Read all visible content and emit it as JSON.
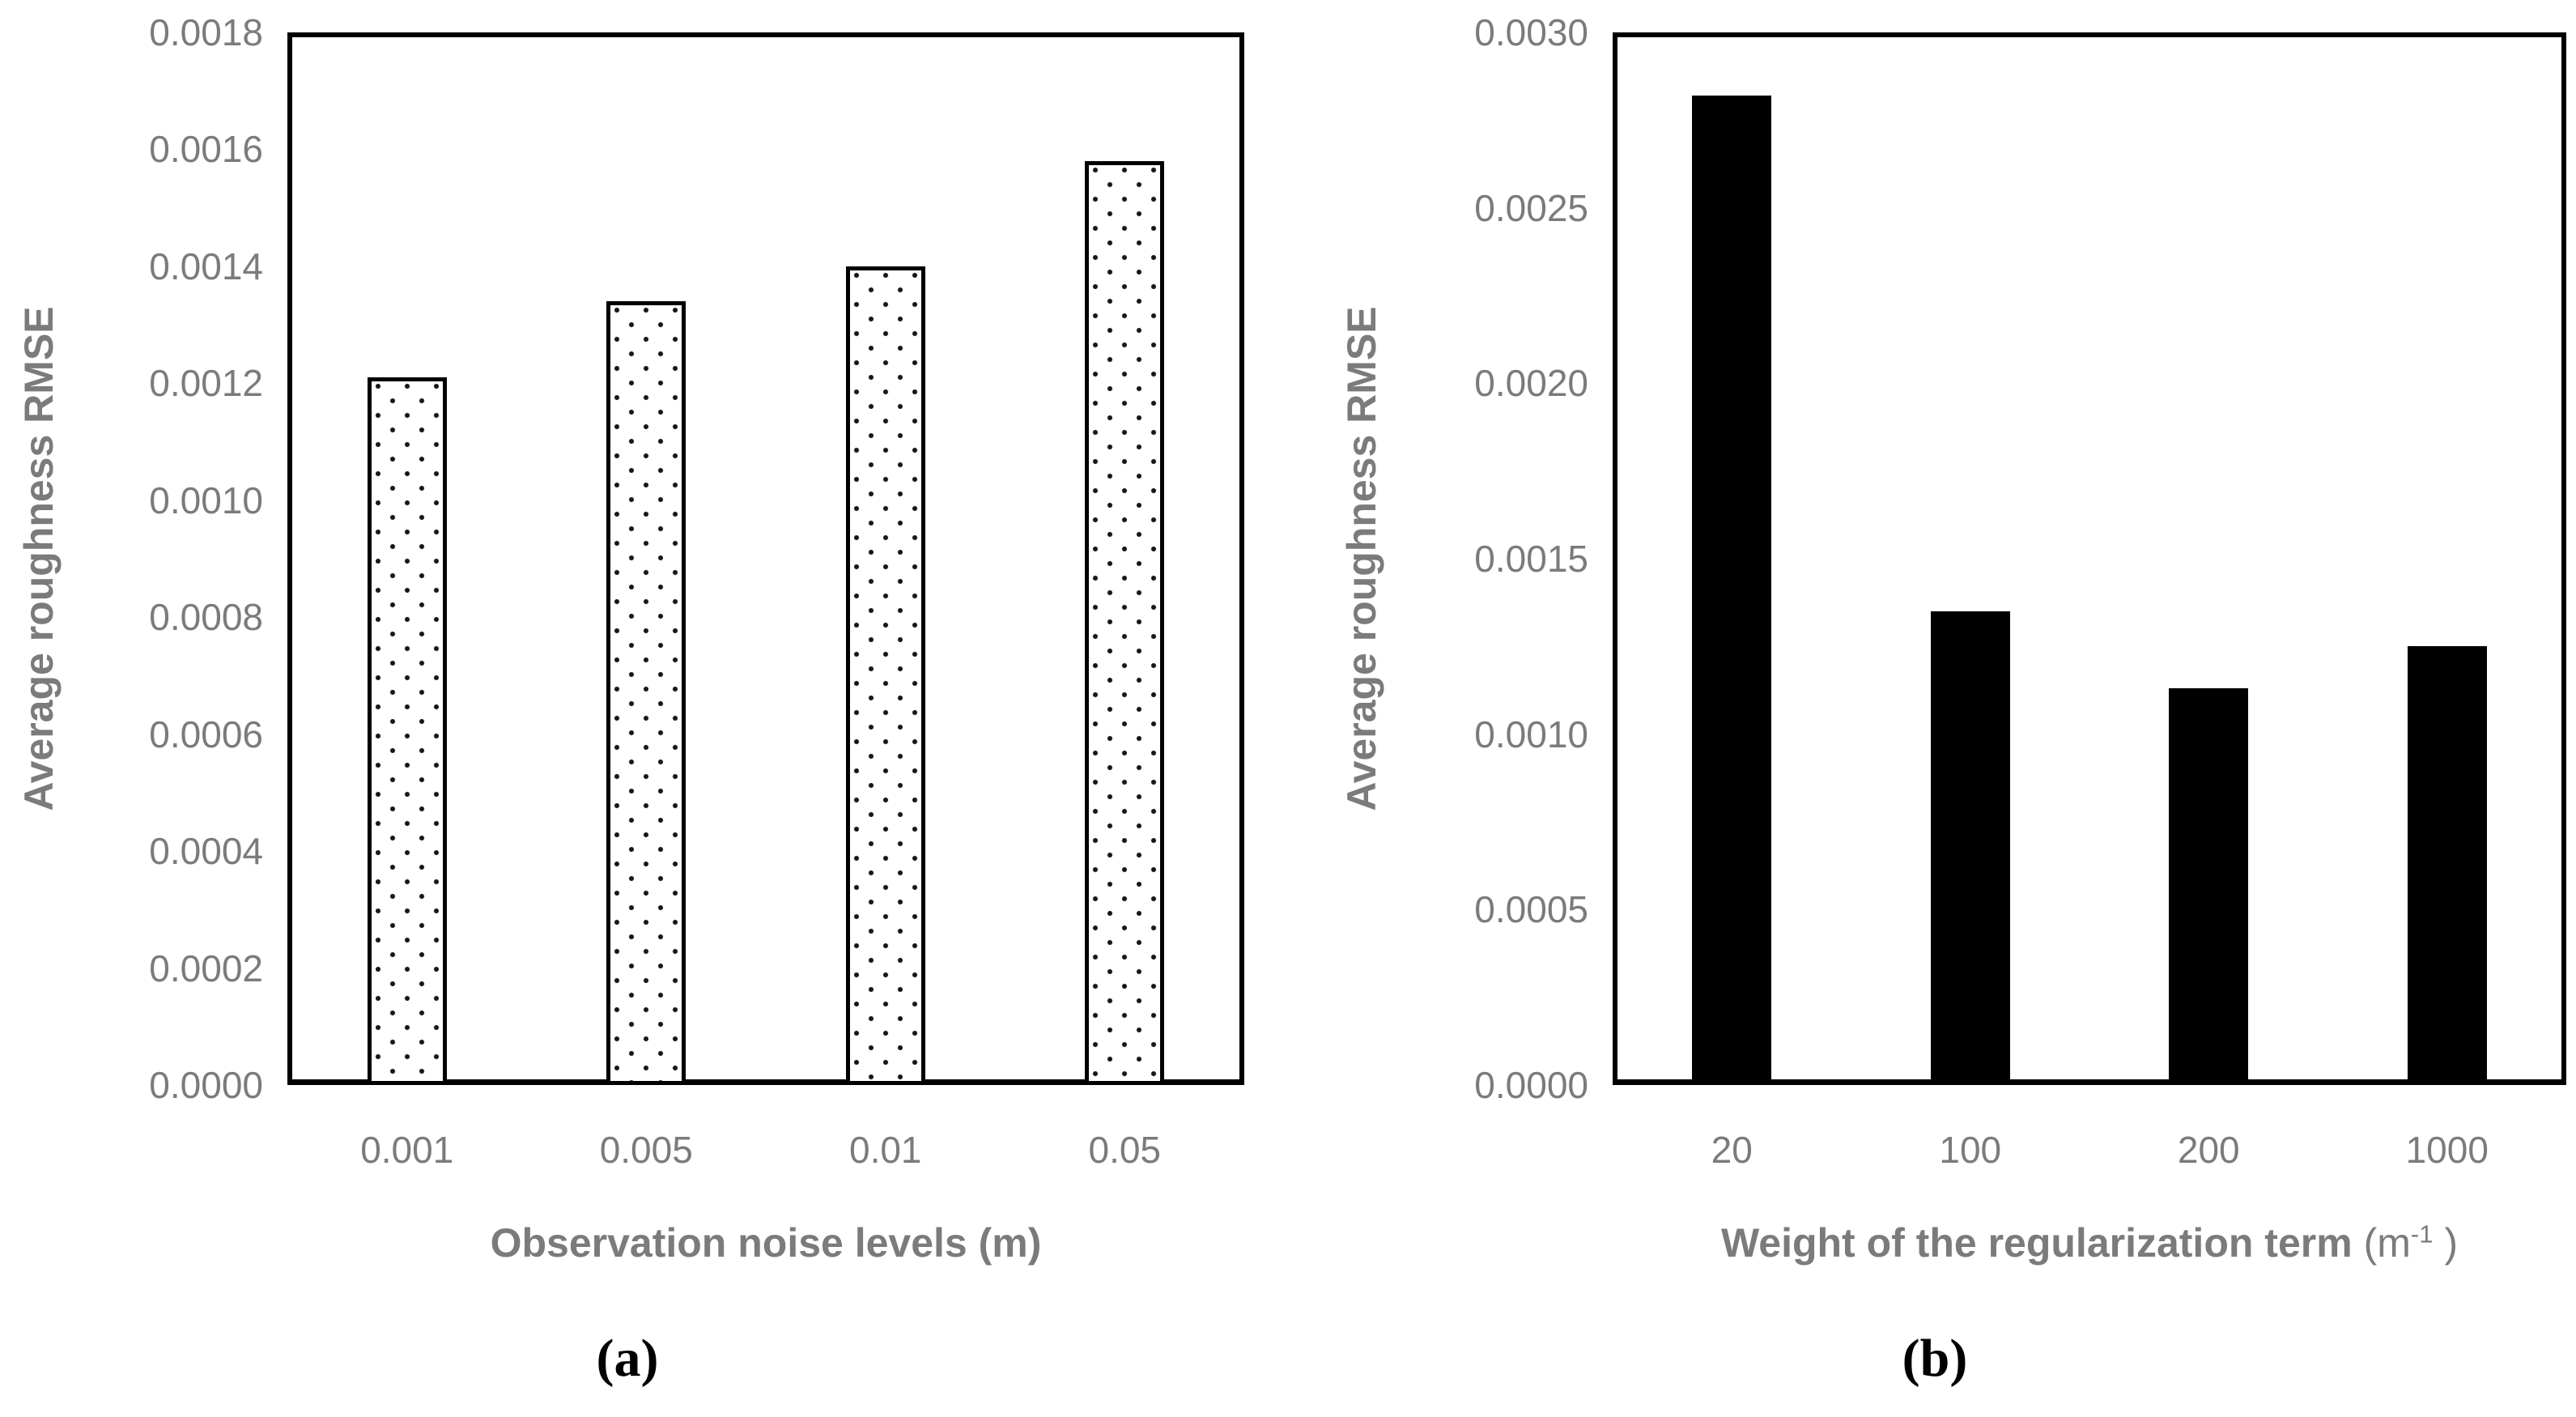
{
  "colors": {
    "text_gray": "#7b7b7b",
    "gridline": "#e2e2e2",
    "bar_black": "#000000",
    "background": "#ffffff"
  },
  "chart_data": [
    {
      "type": "bar",
      "panel_label": "(a)",
      "categories": [
        "0.001",
        "0.005",
        "0.01",
        "0.05"
      ],
      "values": [
        0.00121,
        0.00134,
        0.0014,
        0.00158
      ],
      "title": "",
      "xlabel": "Observation noise levels (m)",
      "ylabel": "Average roughness RMSE",
      "ylim": [
        0,
        0.0018
      ],
      "ytick_step": 0.0002,
      "ytick_labels": [
        "0.0000",
        "0.0002",
        "0.0004",
        "0.0006",
        "0.0008",
        "0.0010",
        "0.0012",
        "0.0014",
        "0.0016",
        "0.0018"
      ],
      "bar_style": "white fill with black dot pattern and black outline",
      "grid": true,
      "legend": "none"
    },
    {
      "type": "bar",
      "panel_label": "(b)",
      "categories": [
        "20",
        "100",
        "200",
        "1000"
      ],
      "values": [
        0.00282,
        0.00135,
        0.00113,
        0.00125
      ],
      "title": "",
      "xlabel": "Weight of the regularization term (m-1 )",
      "xlabel_parts": {
        "main": "Weight of the regularization term ",
        "unit_open": "(m",
        "unit_sup": "-1",
        "unit_close": " )"
      },
      "ylabel": "Average roughness RMSE",
      "ylim": [
        0,
        0.003
      ],
      "ytick_step": 0.0005,
      "ytick_labels": [
        "0.0000",
        "0.0005",
        "0.0010",
        "0.0015",
        "0.0020",
        "0.0025",
        "0.0030"
      ],
      "bar_style": "solid black",
      "grid": true,
      "legend": "none"
    }
  ]
}
